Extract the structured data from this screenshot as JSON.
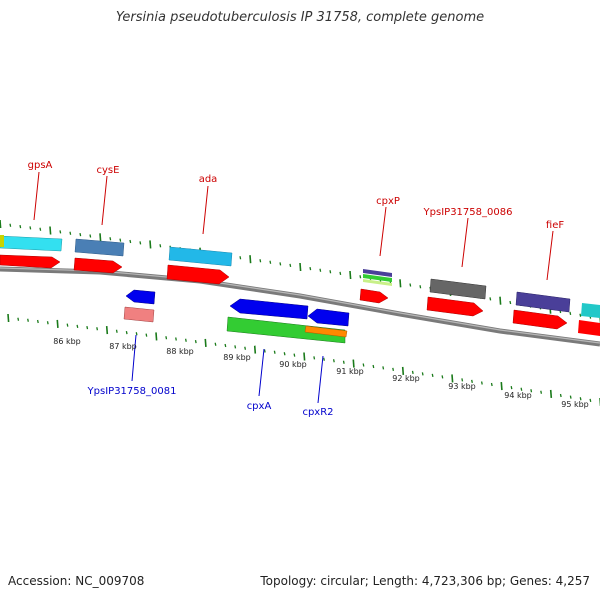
{
  "title": "Yersinia pseudotuberculosis IP 31758, complete genome",
  "footer": {
    "accession": "Accession: NC_009708",
    "summary": "Topology: circular; Length: 4,723,306 bp; Genes: 4,257"
  },
  "scale_labels": [
    "86 kbp",
    "87 kbp",
    "88 kbp",
    "89 kbp",
    "90 kbp",
    "91 kbp",
    "92 kbp",
    "93 kbp",
    "94 kbp",
    "95 kbp"
  ],
  "forward_gene_labels": [
    "gpsA",
    "cysE",
    "ada",
    "cpxP",
    "YpsIP31758_0086",
    "fieF"
  ],
  "reverse_gene_labels": [
    "YpsIP31758_0081",
    "cpxA",
    "cpxR2"
  ],
  "colors": {
    "forward_label": "#cc0000",
    "reverse_label": "#0000cc",
    "tick": "#1a7a1a",
    "backbone": "#8a8a8a",
    "cds": "#ff0000",
    "gene_cyan": "#33e0f0",
    "gene_steel": "#4a7fb5",
    "gene_sky": "#22b8e8",
    "gene_purple": "#4a3f99",
    "gene_gray": "#666666",
    "gene_blue": "#0000ee",
    "gene_pink": "#f08080",
    "gene_green": "#33cc33",
    "gene_orange": "#ff8800",
    "gene_teal": "#22c8c8"
  }
}
